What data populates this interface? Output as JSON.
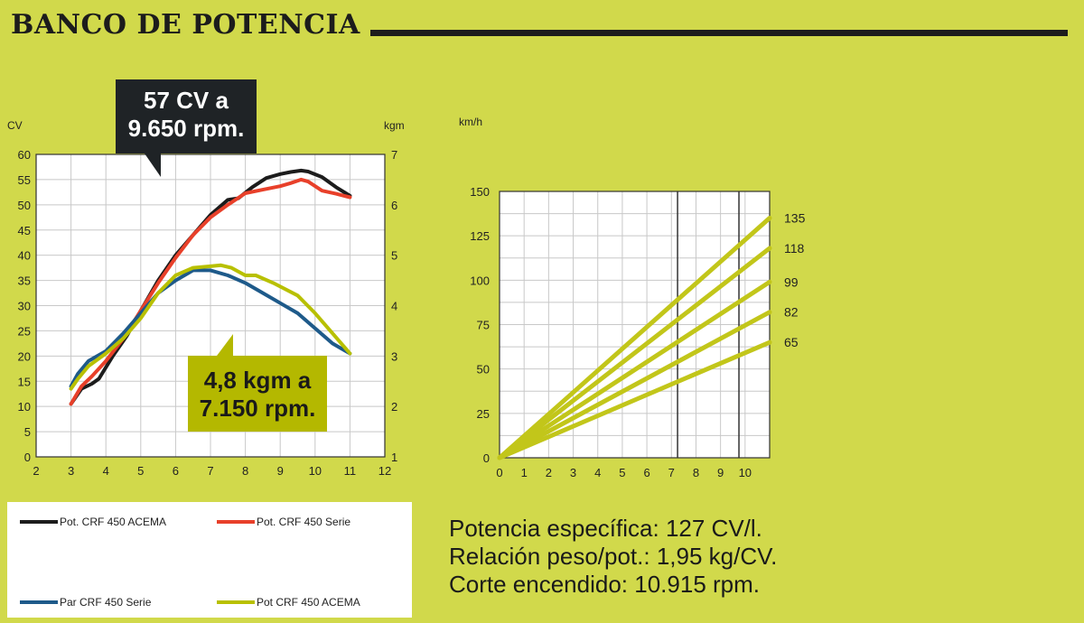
{
  "header": {
    "title": "BANCO DE POTENCIA"
  },
  "colors": {
    "background": "#d1d94b",
    "black_series": "#1c1c1c",
    "red_series": "#e8402a",
    "blue_series": "#1e5a8a",
    "green_series": "#b8c000",
    "speed_lines": "#c2c61a"
  },
  "callouts": {
    "power_line1": "57 CV a",
    "power_line2": "9.650 rpm.",
    "torque_line1": "4,8 kgm a",
    "torque_line2": "7.150 rpm."
  },
  "chart_data": [
    {
      "type": "line",
      "xlabel": "",
      "ylabel": "CV",
      "y2label": "kgm",
      "xlim": [
        2,
        12
      ],
      "ylim": [
        0,
        60
      ],
      "y2lim": [
        1,
        7
      ],
      "x_ticks": [
        "2",
        "3",
        "4",
        "5",
        "6",
        "7",
        "8",
        "9",
        "10",
        "11",
        "12"
      ],
      "y_ticks": [
        "0",
        "5",
        "10",
        "15",
        "20",
        "25",
        "30",
        "35",
        "40",
        "45",
        "50",
        "55",
        "60"
      ],
      "y2_ticks": [
        "1",
        "2",
        "3",
        "4",
        "5",
        "6",
        "7"
      ],
      "grid": true,
      "series": [
        {
          "name": "Pot. CRF 450 ACEMA",
          "axis": "left",
          "color": "#1c1c1c",
          "x": [
            3,
            3.3,
            3.6,
            3.8,
            4.2,
            4.6,
            5,
            5.5,
            6,
            6.5,
            7,
            7.5,
            7.8,
            8.2,
            8.6,
            9,
            9.3,
            9.6,
            9.8,
            10.2,
            10.6,
            11
          ],
          "y": [
            10.5,
            13.5,
            14.5,
            15.5,
            20,
            24,
            29,
            35,
            40,
            44,
            48,
            51,
            51.3,
            53.5,
            55.3,
            56.1,
            56.5,
            56.8,
            56.6,
            55.5,
            53.5,
            51.8
          ]
        },
        {
          "name": "Pot. CRF 450 Serie",
          "axis": "left",
          "color": "#e8402a",
          "x": [
            3,
            3.3,
            3.6,
            4,
            4.5,
            5,
            5.5,
            6,
            6.5,
            7,
            7.5,
            8,
            8.5,
            9,
            9.3,
            9.6,
            9.8,
            10.2,
            10.6,
            11
          ],
          "y": [
            10.5,
            14,
            16,
            19,
            23.5,
            29,
            34.5,
            39.5,
            44,
            47.5,
            50,
            52.3,
            53,
            53.7,
            54.3,
            55,
            54.6,
            52.8,
            52.2,
            51.5
          ]
        },
        {
          "name": "Par CRF 450 Serie",
          "axis": "right",
          "color": "#1e5a8a",
          "x": [
            3,
            3.2,
            3.5,
            4,
            4.5,
            5,
            5.5,
            6,
            6.5,
            7,
            7.5,
            8,
            8.5,
            9,
            9.5,
            10,
            10.5,
            11
          ],
          "y": [
            2.4,
            2.65,
            2.9,
            3.1,
            3.45,
            3.85,
            4.25,
            4.5,
            4.7,
            4.7,
            4.6,
            4.45,
            4.25,
            4.05,
            3.85,
            3.55,
            3.25,
            3.05
          ]
        },
        {
          "name": "Pot CRF 450 ACEMA",
          "axis": "right",
          "color": "#b8c000",
          "x": [
            3,
            3.2,
            3.5,
            4,
            4.5,
            5,
            5.5,
            6,
            6.5,
            7,
            7.3,
            7.6,
            8,
            8.3,
            8.8,
            9.5,
            10,
            10.5,
            11
          ],
          "y": [
            2.35,
            2.55,
            2.8,
            3.05,
            3.35,
            3.75,
            4.25,
            4.6,
            4.75,
            4.78,
            4.8,
            4.75,
            4.6,
            4.6,
            4.45,
            4.2,
            3.85,
            3.45,
            3.05
          ]
        }
      ]
    },
    {
      "type": "line",
      "xlabel": "",
      "ylabel": "km/h",
      "xlim": [
        0,
        11
      ],
      "ylim": [
        0,
        150
      ],
      "x_ticks": [
        "0",
        "1",
        "2",
        "3",
        "4",
        "5",
        "6",
        "7",
        "8",
        "9",
        "10"
      ],
      "y_ticks": [
        "0",
        "25",
        "50",
        "75",
        "100",
        "125",
        "150"
      ],
      "grid": true,
      "vertical_markers": [
        7.25,
        9.75
      ],
      "series": [
        {
          "name": "135",
          "x": [
            0,
            11
          ],
          "y": [
            0,
            135
          ]
        },
        {
          "name": "118",
          "x": [
            0,
            11
          ],
          "y": [
            0,
            118
          ]
        },
        {
          "name": "99",
          "x": [
            0,
            11
          ],
          "y": [
            0,
            99
          ]
        },
        {
          "name": "82",
          "x": [
            0,
            11
          ],
          "y": [
            0,
            82
          ]
        },
        {
          "name": "65",
          "x": [
            0,
            11
          ],
          "y": [
            0,
            65
          ]
        }
      ]
    }
  ],
  "legend": [
    {
      "label": "Pot. CRF 450 ACEMA",
      "color": "#1c1c1c"
    },
    {
      "label": "Pot. CRF 450 Serie",
      "color": "#e8402a"
    },
    {
      "label": "Par CRF 450 Serie",
      "color": "#1e5a8a"
    },
    {
      "label": "Pot CRF 450 ACEMA",
      "color": "#b8c000"
    }
  ],
  "stats": [
    {
      "label": "Potencia específica:",
      "value": "127 CV/l."
    },
    {
      "label": "Relación peso/pot.:",
      "value": "1,95 kg/CV."
    },
    {
      "label": "Corte encendido:",
      "value": "10.915 rpm."
    }
  ]
}
